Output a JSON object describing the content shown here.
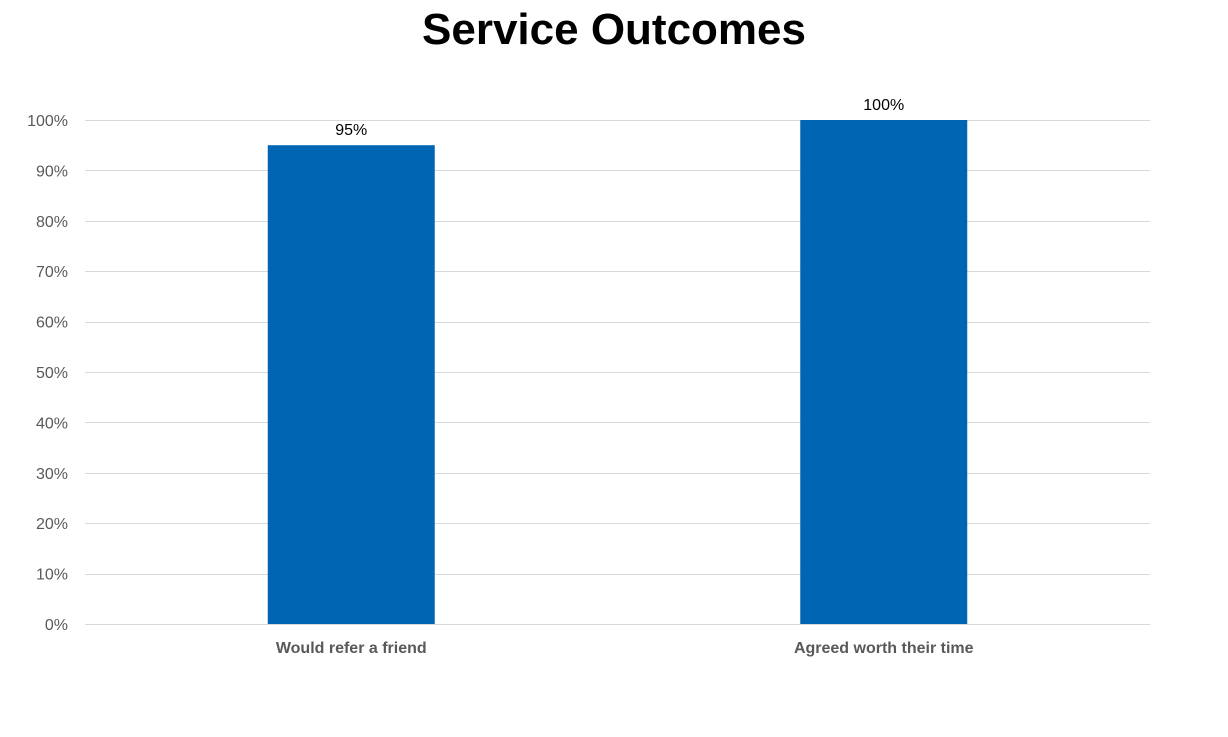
{
  "chart_data": {
    "type": "bar",
    "title": "Service Outcomes",
    "categories": [
      "Would refer a friend",
      "Agreed worth their time"
    ],
    "values": [
      95,
      100
    ],
    "data_labels": [
      "95%",
      "100%"
    ],
    "ylim": [
      0,
      100
    ],
    "y_ticks": [
      0,
      10,
      20,
      30,
      40,
      50,
      60,
      70,
      80,
      90,
      100
    ],
    "y_tick_labels": [
      "0%",
      "10%",
      "20%",
      "30%",
      "40%",
      "50%",
      "60%",
      "70%",
      "80%",
      "90%",
      "100%"
    ],
    "grid": true,
    "legend": "none",
    "bar_color": "#0066B3",
    "grid_color": "#D9D9D9"
  }
}
